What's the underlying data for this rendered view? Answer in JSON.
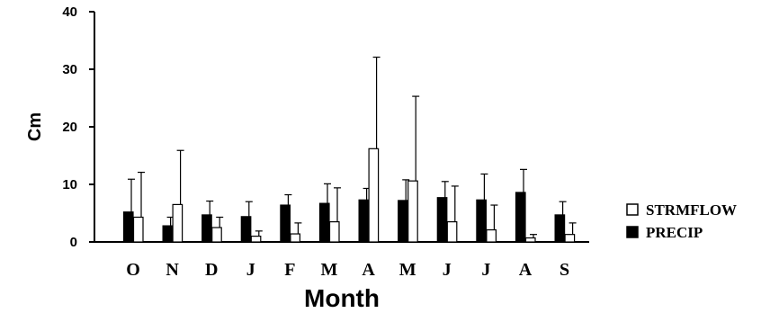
{
  "chart_data": {
    "type": "bar",
    "xlabel": "Month",
    "ylabel": "Cm",
    "ylim": [
      0,
      40
    ],
    "yticks": [
      "0",
      "10",
      "20",
      "30",
      "40"
    ],
    "categories": [
      "O",
      "N",
      "D",
      "J",
      "F",
      "M",
      "A",
      "M",
      "J",
      "J",
      "A",
      "S"
    ],
    "series": [
      {
        "name": "PRECIP",
        "fill": "#000000",
        "values": [
          5.2,
          2.8,
          4.7,
          4.4,
          6.4,
          6.7,
          7.3,
          7.2,
          7.7,
          7.3,
          8.6,
          4.7
        ],
        "error_upper": [
          10.9,
          4.3,
          7.1,
          7.0,
          8.2,
          10.1,
          9.3,
          10.8,
          10.5,
          11.8,
          12.6,
          7.0
        ]
      },
      {
        "name": "STRMFLOW",
        "fill": "#ffffff",
        "values": [
          4.3,
          6.5,
          2.5,
          1.0,
          1.4,
          3.5,
          16.2,
          10.6,
          3.5,
          2.1,
          0.7,
          1.3
        ],
        "error_upper": [
          12.1,
          15.9,
          4.3,
          1.9,
          3.3,
          9.4,
          32.1,
          25.3,
          9.7,
          6.4,
          1.3,
          3.3
        ]
      }
    ],
    "legend": {
      "position": "right",
      "entries": [
        "STRMFLOW",
        "PRECIP"
      ]
    },
    "grid": false
  }
}
